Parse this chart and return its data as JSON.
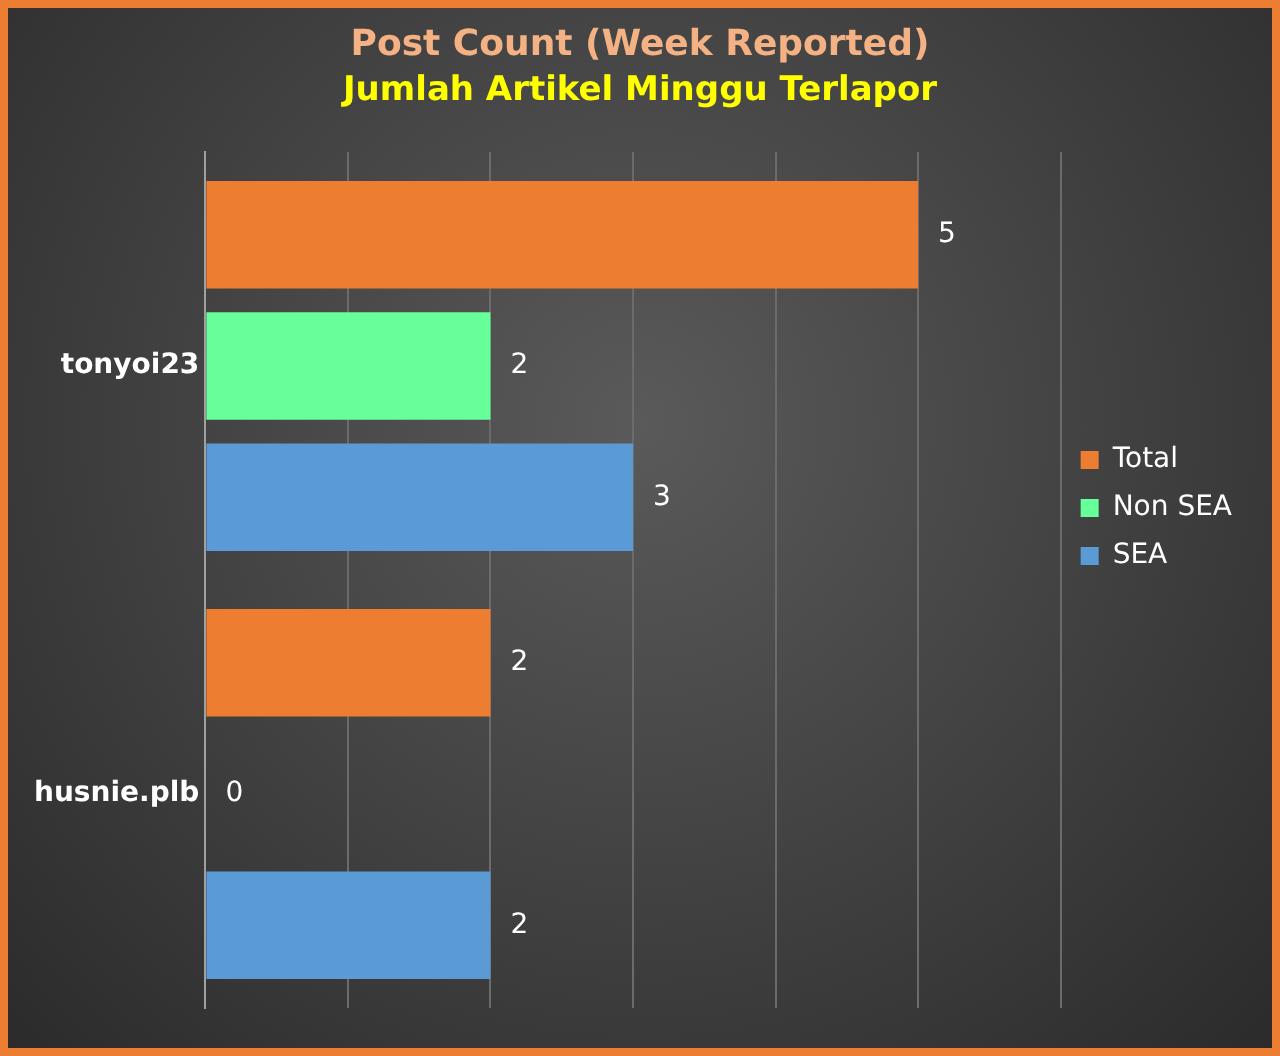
{
  "chart_data": {
    "type": "bar",
    "orientation": "horizontal",
    "title": "Post Count (Week Reported)",
    "subtitle": "Jumlah Artikel Minggu Terlapor",
    "categories": [
      "tonyoi23",
      "husnie.plb"
    ],
    "series": [
      {
        "name": "Total",
        "color": "#ed7d31",
        "values": [
          5,
          2
        ]
      },
      {
        "name": "Non SEA",
        "color": "#66ff99",
        "values": [
          2,
          0
        ]
      },
      {
        "name": "SEA",
        "color": "#5b9bd5",
        "values": [
          3,
          2
        ]
      }
    ],
    "xlim": [
      0,
      6
    ],
    "xticks": [
      {
        "value": 0,
        "label": null
      },
      {
        "value": 1,
        "label": null
      },
      {
        "value": 2,
        "label": null
      },
      {
        "value": 3,
        "label": null
      },
      {
        "value": 4,
        "label": null
      },
      {
        "value": 5,
        "label": null
      },
      {
        "value": 6,
        "label": null
      }
    ],
    "grid": "x",
    "legend": "right",
    "tick_labels": "y",
    "data_labels": true
  }
}
